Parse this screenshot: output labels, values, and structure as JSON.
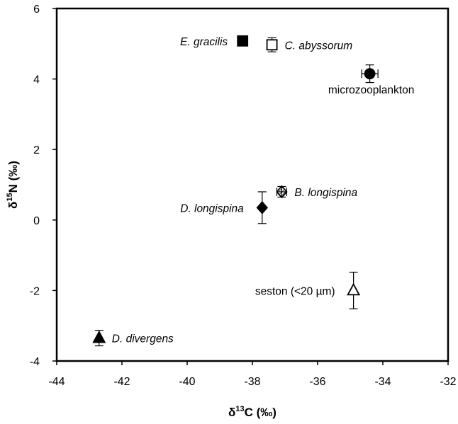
{
  "chart_data": {
    "type": "scatter",
    "xlabel_symbol": "δ",
    "xlabel_sup": "13",
    "xlabel_rest": "C (‰)",
    "ylabel_symbol": "δ",
    "ylabel_sup": "15",
    "ylabel_rest": "N (‰)",
    "xlim": [
      -44,
      -32
    ],
    "ylim": [
      -4,
      6
    ],
    "xticks": [
      -44,
      -42,
      -40,
      -38,
      -36,
      -34,
      -32
    ],
    "yticks": [
      -4,
      -2,
      0,
      2,
      4,
      6
    ],
    "grid": false,
    "points": [
      {
        "label": "E. gracilis",
        "italic": true,
        "x": -38.3,
        "y": 5.08,
        "xerr": 0,
        "yerr": 0,
        "marker": "square",
        "fill": "filled",
        "label_side": "left"
      },
      {
        "label": "C. abyssorum",
        "italic": true,
        "x": -37.4,
        "y": 4.97,
        "xerr": 0,
        "yerr": 0.2,
        "marker": "square",
        "fill": "open",
        "label_side": "right"
      },
      {
        "label": "microzooplankton",
        "italic": false,
        "x": -34.4,
        "y": 4.15,
        "xerr": 0.25,
        "yerr": 0.25,
        "marker": "circle",
        "fill": "filled",
        "label_side": "below"
      },
      {
        "label": "B. longispina",
        "italic": true,
        "x": -37.1,
        "y": 0.8,
        "xerr": 0.15,
        "yerr": 0.15,
        "marker": "diamond",
        "fill": "hatched",
        "label_side": "right"
      },
      {
        "label": "D. longispina",
        "italic": true,
        "x": -37.7,
        "y": 0.35,
        "xerr": 0,
        "yerr": 0.45,
        "marker": "diamond",
        "fill": "filled",
        "label_side": "left"
      },
      {
        "label": "seston (<20 µm)",
        "italic": false,
        "x": -34.9,
        "y": -2.0,
        "xerr": 0,
        "yerr": 0.52,
        "marker": "triangle",
        "fill": "open",
        "label_side": "left"
      },
      {
        "label": "D. divergens",
        "italic": true,
        "x": -42.7,
        "y": -3.35,
        "xerr": 0,
        "yerr": 0.22,
        "marker": "triangle",
        "fill": "filled",
        "label_side": "right"
      }
    ]
  }
}
